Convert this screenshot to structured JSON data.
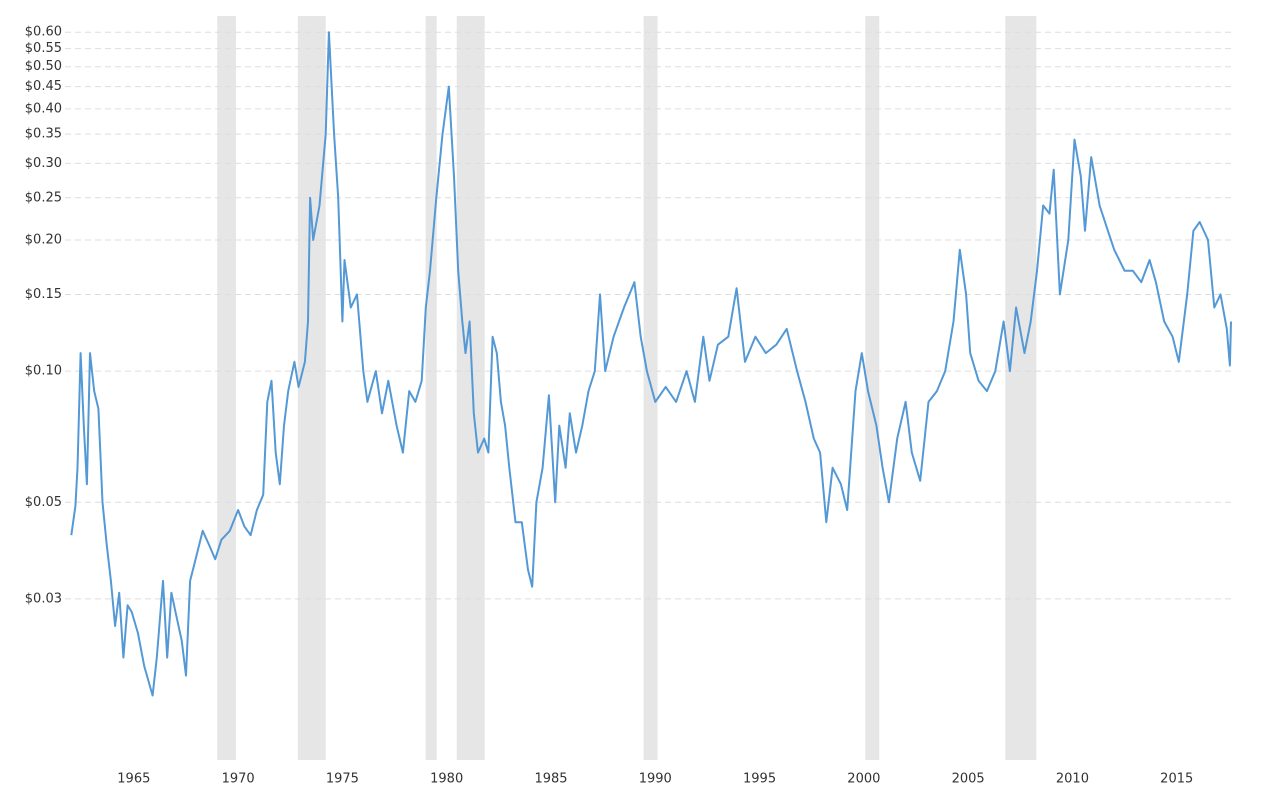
{
  "chart_data": {
    "type": "line",
    "log_scale": true,
    "grid": true,
    "color": "#5499d6",
    "band_color": "#e6e6e6",
    "xlim": [
      1961.7,
      2017.65
    ],
    "xticks": [
      1965,
      1970,
      1975,
      1980,
      1985,
      1990,
      1995,
      2000,
      2005,
      2010,
      2015
    ],
    "ylim": [
      0.0128,
      0.64
    ],
    "yticks": [
      {
        "value": 0.03,
        "label": "$0.03"
      },
      {
        "value": 0.05,
        "label": "$0.05"
      },
      {
        "value": 0.1,
        "label": "$0.10"
      },
      {
        "value": 0.15,
        "label": "$0.15"
      },
      {
        "value": 0.2,
        "label": "$0.20"
      },
      {
        "value": 0.25,
        "label": "$0.25"
      },
      {
        "value": 0.3,
        "label": "$0.30"
      },
      {
        "value": 0.35,
        "label": "$0.35"
      },
      {
        "value": 0.4,
        "label": "$0.40"
      },
      {
        "value": 0.45,
        "label": "$0.45"
      },
      {
        "value": 0.5,
        "label": "$0.50"
      },
      {
        "value": 0.55,
        "label": "$0.55"
      },
      {
        "value": 0.6,
        "label": "$0.60"
      }
    ],
    "shaded_periods": [
      [
        1969.0,
        1969.9
      ],
      [
        1972.86,
        1974.2
      ],
      [
        1978.99,
        1979.52
      ],
      [
        1980.48,
        1981.82
      ],
      [
        1989.44,
        1990.11
      ],
      [
        2000.07,
        2000.74
      ],
      [
        2006.78,
        2008.27
      ]
    ],
    "x": [
      1962.0,
      1962.2,
      1962.3,
      1962.45,
      1962.6,
      1962.75,
      1962.9,
      1963.1,
      1963.3,
      1963.5,
      1963.7,
      1963.9,
      1964.1,
      1964.3,
      1964.5,
      1964.7,
      1964.9,
      1965.2,
      1965.5,
      1965.9,
      1966.1,
      1966.4,
      1966.6,
      1966.8,
      1967.0,
      1967.3,
      1967.5,
      1967.7,
      1967.9,
      1968.3,
      1968.6,
      1968.9,
      1969.2,
      1969.6,
      1970.0,
      1970.3,
      1970.6,
      1970.9,
      1971.2,
      1971.4,
      1971.6,
      1971.8,
      1972.0,
      1972.2,
      1972.4,
      1972.7,
      1972.9,
      1973.2,
      1973.35,
      1973.45,
      1973.6,
      1973.9,
      1974.2,
      1974.35,
      1974.6,
      1974.8,
      1975.0,
      1975.1,
      1975.4,
      1975.7,
      1976.0,
      1976.2,
      1976.6,
      1976.9,
      1977.2,
      1977.6,
      1977.9,
      1978.2,
      1978.5,
      1978.8,
      1979.0,
      1979.2,
      1979.5,
      1979.8,
      1980.1,
      1980.35,
      1980.55,
      1980.75,
      1980.9,
      1981.1,
      1981.3,
      1981.5,
      1981.8,
      1982.0,
      1982.2,
      1982.4,
      1982.6,
      1982.8,
      1983.0,
      1983.3,
      1983.6,
      1983.9,
      1984.1,
      1984.3,
      1984.6,
      1984.9,
      1985.2,
      1985.4,
      1985.7,
      1985.9,
      1986.2,
      1986.5,
      1986.8,
      1987.1,
      1987.35,
      1987.6,
      1988.0,
      1988.5,
      1989.0,
      1989.3,
      1989.6,
      1990.0,
      1990.5,
      1991.0,
      1991.5,
      1991.9,
      1992.3,
      1992.6,
      1993.0,
      1993.5,
      1993.9,
      1994.3,
      1994.8,
      1995.3,
      1995.8,
      1996.3,
      1996.8,
      1997.2,
      1997.6,
      1997.9,
      1998.2,
      1998.5,
      1998.9,
      1999.2,
      1999.6,
      1999.9,
      2000.2,
      2000.6,
      2000.9,
      2001.2,
      2001.6,
      2002.0,
      2002.3,
      2002.7,
      2003.1,
      2003.5,
      2003.9,
      2004.3,
      2004.6,
      2004.9,
      2005.1,
      2005.5,
      2005.9,
      2006.3,
      2006.7,
      2007.0,
      2007.3,
      2007.7,
      2008.0,
      2008.3,
      2008.6,
      2008.9,
      2009.1,
      2009.4,
      2009.8,
      2010.1,
      2010.4,
      2010.6,
      2010.9,
      2011.3,
      2011.7,
      2012.0,
      2012.5,
      2012.9,
      2013.3,
      2013.7,
      2014.0,
      2014.4,
      2014.8,
      2015.1,
      2015.5,
      2015.8,
      2016.1,
      2016.5,
      2016.8,
      2017.1,
      2017.4,
      2017.55,
      2017.6
    ],
    "values": [
      0.042,
      0.049,
      0.06,
      0.11,
      0.075,
      0.055,
      0.11,
      0.09,
      0.082,
      0.05,
      0.04,
      0.033,
      0.026,
      0.031,
      0.022,
      0.029,
      0.028,
      0.025,
      0.021,
      0.018,
      0.022,
      0.033,
      0.022,
      0.031,
      0.028,
      0.024,
      0.02,
      0.033,
      0.036,
      0.043,
      0.04,
      0.037,
      0.041,
      0.043,
      0.048,
      0.044,
      0.042,
      0.048,
      0.052,
      0.085,
      0.095,
      0.065,
      0.055,
      0.075,
      0.09,
      0.105,
      0.092,
      0.105,
      0.13,
      0.25,
      0.2,
      0.24,
      0.35,
      0.6,
      0.35,
      0.25,
      0.13,
      0.18,
      0.14,
      0.15,
      0.1,
      0.085,
      0.1,
      0.08,
      0.095,
      0.075,
      0.065,
      0.09,
      0.085,
      0.095,
      0.14,
      0.17,
      0.25,
      0.35,
      0.45,
      0.28,
      0.17,
      0.13,
      0.11,
      0.13,
      0.08,
      0.065,
      0.07,
      0.065,
      0.12,
      0.11,
      0.085,
      0.075,
      0.06,
      0.045,
      0.045,
      0.035,
      0.032,
      0.05,
      0.06,
      0.088,
      0.05,
      0.075,
      0.06,
      0.08,
      0.065,
      0.075,
      0.09,
      0.1,
      0.15,
      0.1,
      0.12,
      0.14,
      0.16,
      0.12,
      0.1,
      0.085,
      0.092,
      0.085,
      0.1,
      0.085,
      0.12,
      0.095,
      0.115,
      0.12,
      0.155,
      0.105,
      0.12,
      0.11,
      0.115,
      0.125,
      0.1,
      0.085,
      0.07,
      0.065,
      0.045,
      0.06,
      0.055,
      0.048,
      0.09,
      0.11,
      0.09,
      0.075,
      0.06,
      0.05,
      0.07,
      0.085,
      0.065,
      0.056,
      0.085,
      0.09,
      0.1,
      0.13,
      0.19,
      0.15,
      0.11,
      0.095,
      0.09,
      0.1,
      0.13,
      0.1,
      0.14,
      0.11,
      0.13,
      0.17,
      0.24,
      0.23,
      0.29,
      0.15,
      0.2,
      0.34,
      0.28,
      0.21,
      0.31,
      0.24,
      0.21,
      0.19,
      0.17,
      0.17,
      0.16,
      0.18,
      0.16,
      0.13,
      0.12,
      0.105,
      0.15,
      0.21,
      0.22,
      0.2,
      0.14,
      0.15,
      0.125,
      0.103,
      0.13
    ]
  }
}
